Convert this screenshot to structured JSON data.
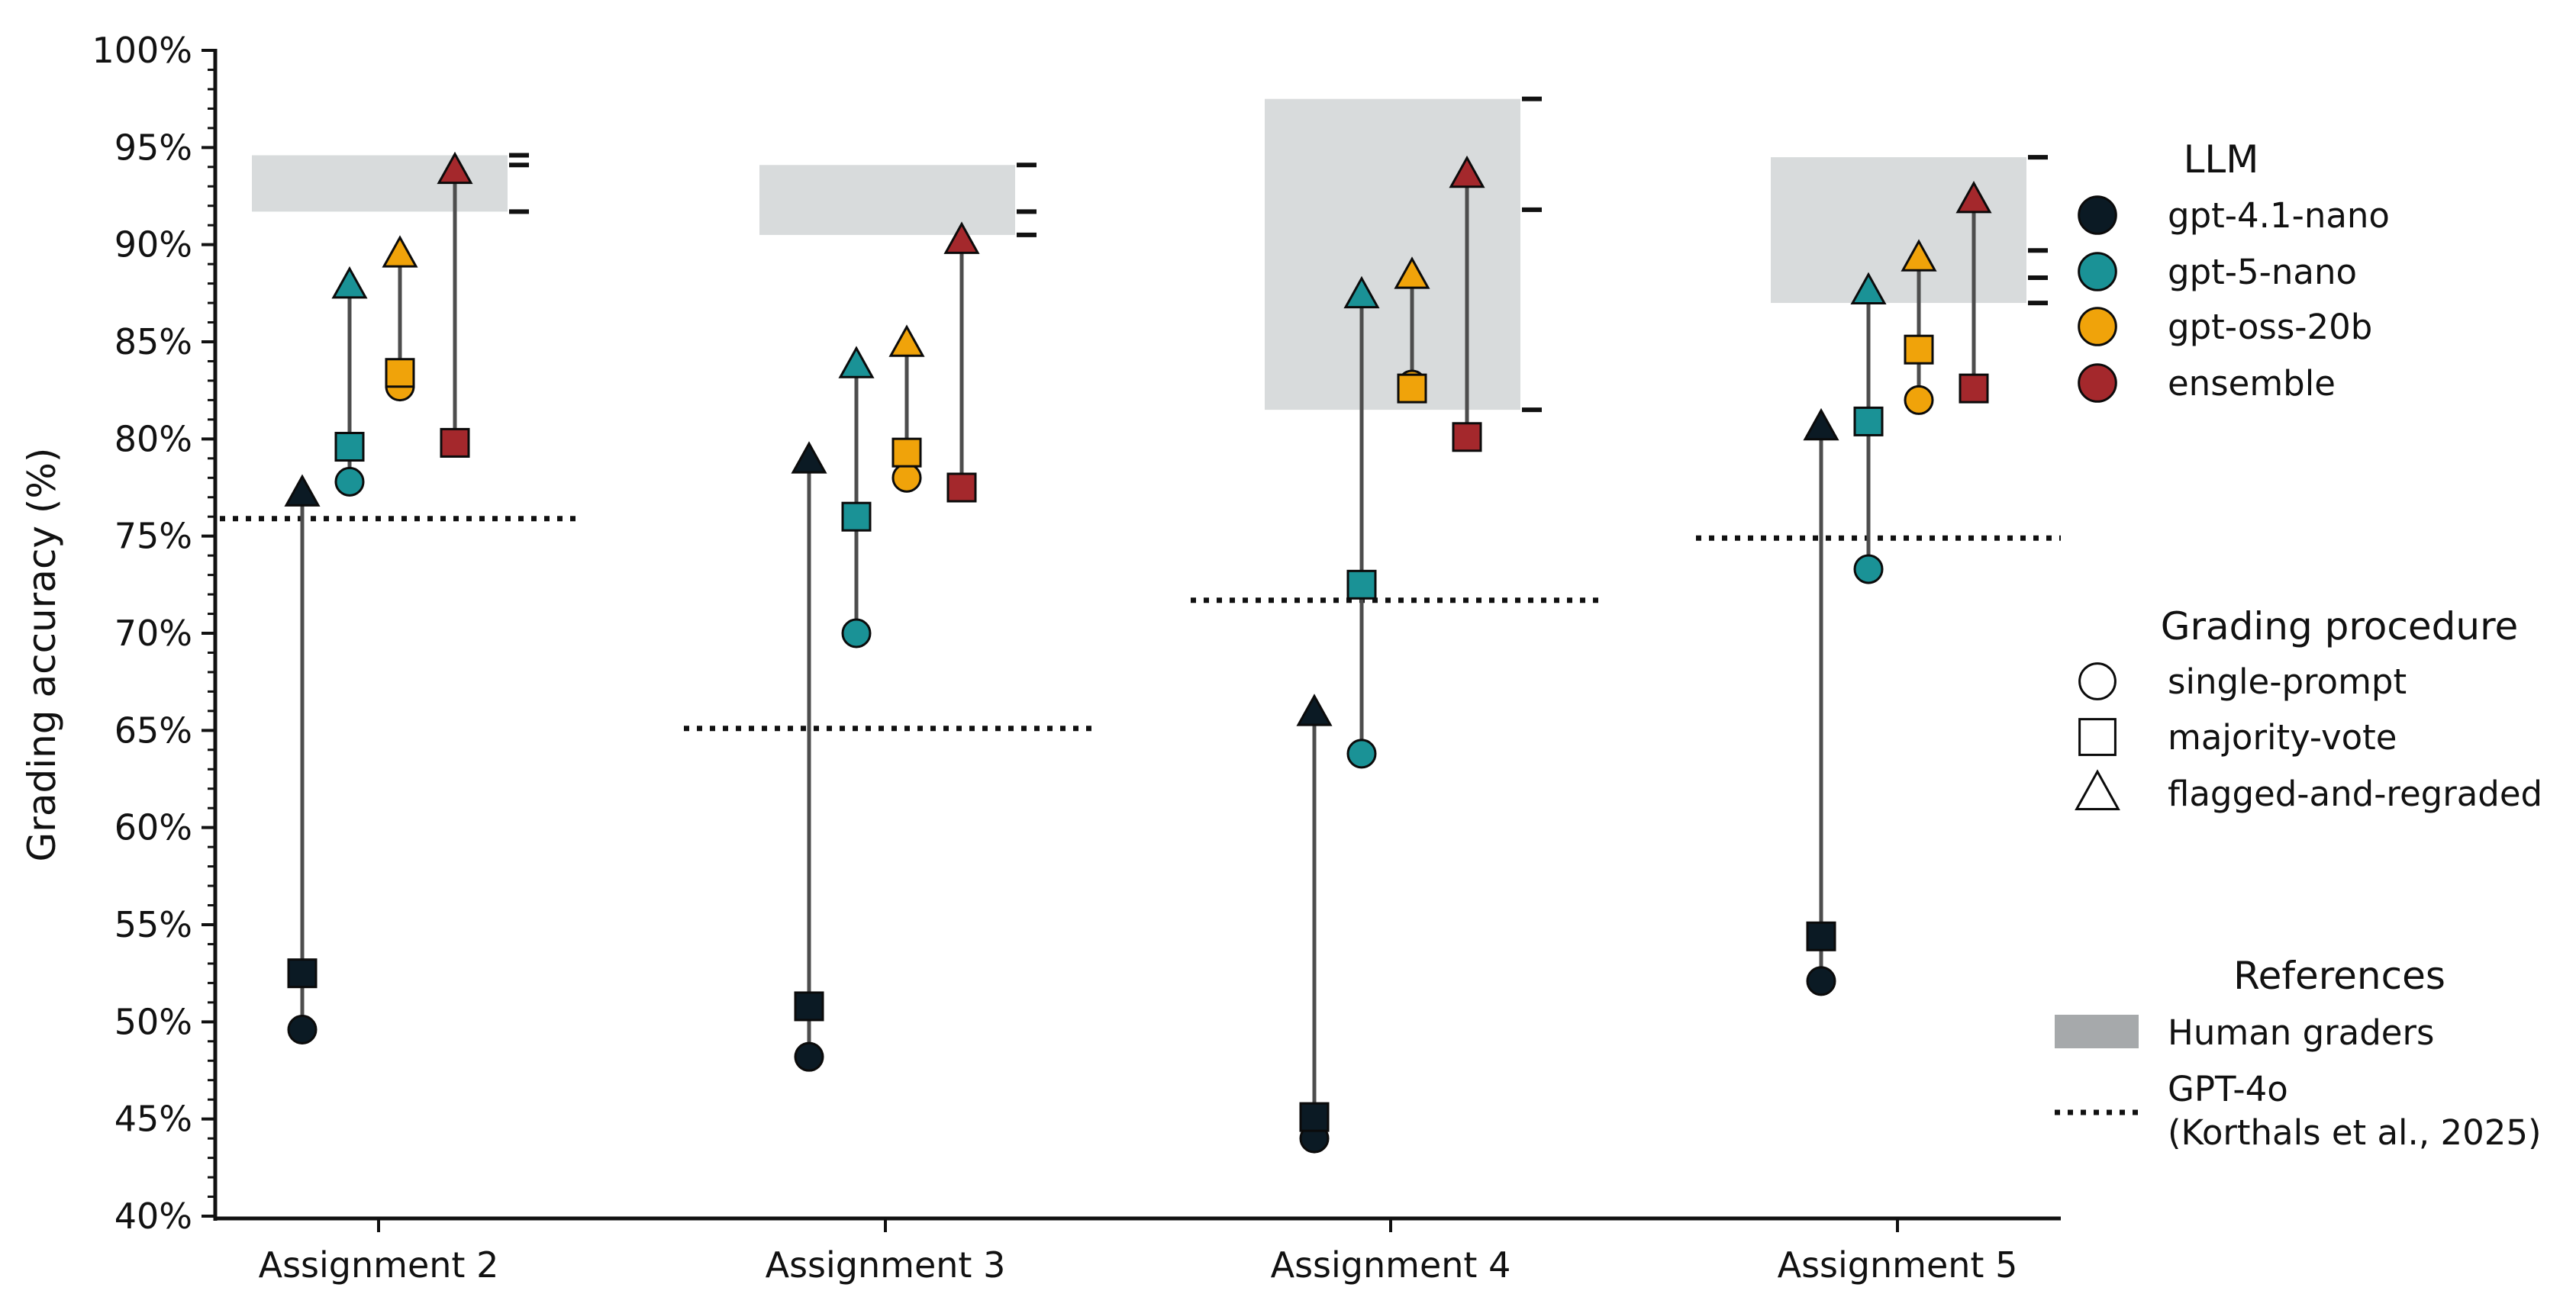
{
  "chart_data": {
    "type": "scatter",
    "title": "",
    "xlabel": "",
    "ylabel": "Grading accuracy (%)",
    "ylim": [
      40,
      100
    ],
    "y_ticks": [
      40,
      45,
      50,
      55,
      60,
      65,
      70,
      75,
      80,
      85,
      90,
      95,
      100
    ],
    "y_tick_suffix": "%",
    "categories": [
      "Assignment 2",
      "Assignment 3",
      "Assignment 4",
      "Assignment 5"
    ],
    "llms": [
      {
        "key": "gpt41nano",
        "name": "gpt-4.1-nano",
        "color": "#0b1a24"
      },
      {
        "key": "gpt5nano",
        "name": "gpt-5-nano",
        "color": "#1a9296"
      },
      {
        "key": "gptoss20b",
        "name": "gpt-oss-20b",
        "color": "#f0a30a"
      },
      {
        "key": "ensemble",
        "name": "ensemble",
        "color": "#a4282c"
      }
    ],
    "procedures": [
      {
        "key": "single",
        "name": "single-prompt",
        "marker": "circle"
      },
      {
        "key": "majority",
        "name": "majority-vote",
        "marker": "square"
      },
      {
        "key": "flagged",
        "name": "flagged-and-regraded",
        "marker": "triangle"
      }
    ],
    "series": [
      {
        "name": "gpt-4.1-nano",
        "single": [
          49.6,
          48.2,
          44.0,
          52.1
        ],
        "majority": [
          52.5,
          50.8,
          45.1,
          54.4
        ],
        "flagged": [
          77.2,
          78.9,
          65.9,
          80.6
        ]
      },
      {
        "name": "gpt-5-nano",
        "single": [
          77.8,
          70.0,
          63.8,
          73.3
        ],
        "majority": [
          79.6,
          76.0,
          72.5,
          80.9
        ],
        "flagged": [
          87.9,
          83.8,
          87.4,
          87.6
        ]
      },
      {
        "name": "gpt-oss-20b",
        "single": [
          82.7,
          78.0,
          82.8,
          82.0
        ],
        "majority": [
          83.4,
          79.3,
          82.6,
          84.6
        ],
        "flagged": [
          89.5,
          84.9,
          88.4,
          89.3
        ]
      },
      {
        "name": "ensemble",
        "single": [
          null,
          null,
          null,
          null
        ],
        "majority": [
          79.8,
          77.5,
          80.1,
          82.6
        ],
        "flagged": [
          93.8,
          90.2,
          93.6,
          92.3
        ]
      }
    ],
    "human_graders": [
      {
        "min": 91.7,
        "max": 94.6,
        "ticks": [
          94.6,
          94.1,
          91.7
        ]
      },
      {
        "min": 90.5,
        "max": 94.1,
        "ticks": [
          94.1,
          91.7,
          90.5
        ]
      },
      {
        "min": 81.5,
        "max": 97.5,
        "ticks": [
          97.5,
          91.8,
          81.5
        ]
      },
      {
        "min": 87.0,
        "max": 94.5,
        "ticks": [
          94.5,
          89.7,
          88.3,
          87.0
        ]
      }
    ],
    "gpt4o_reference": [
      75.9,
      65.1,
      71.7,
      74.9
    ],
    "legend": {
      "placement": "right",
      "llm_title": "LLM",
      "procedure_title": "Grading procedure",
      "references_title": "References",
      "human_label": "Human graders",
      "gpt4o_label_line1": "GPT-4o",
      "gpt4o_label_line2": "(Korthals et al., 2025)",
      "human_color": "#a6a9ab"
    },
    "colors": {
      "human_band": "#d8dbdc",
      "connector": "#4d4d4d",
      "axis": "#111111"
    }
  }
}
